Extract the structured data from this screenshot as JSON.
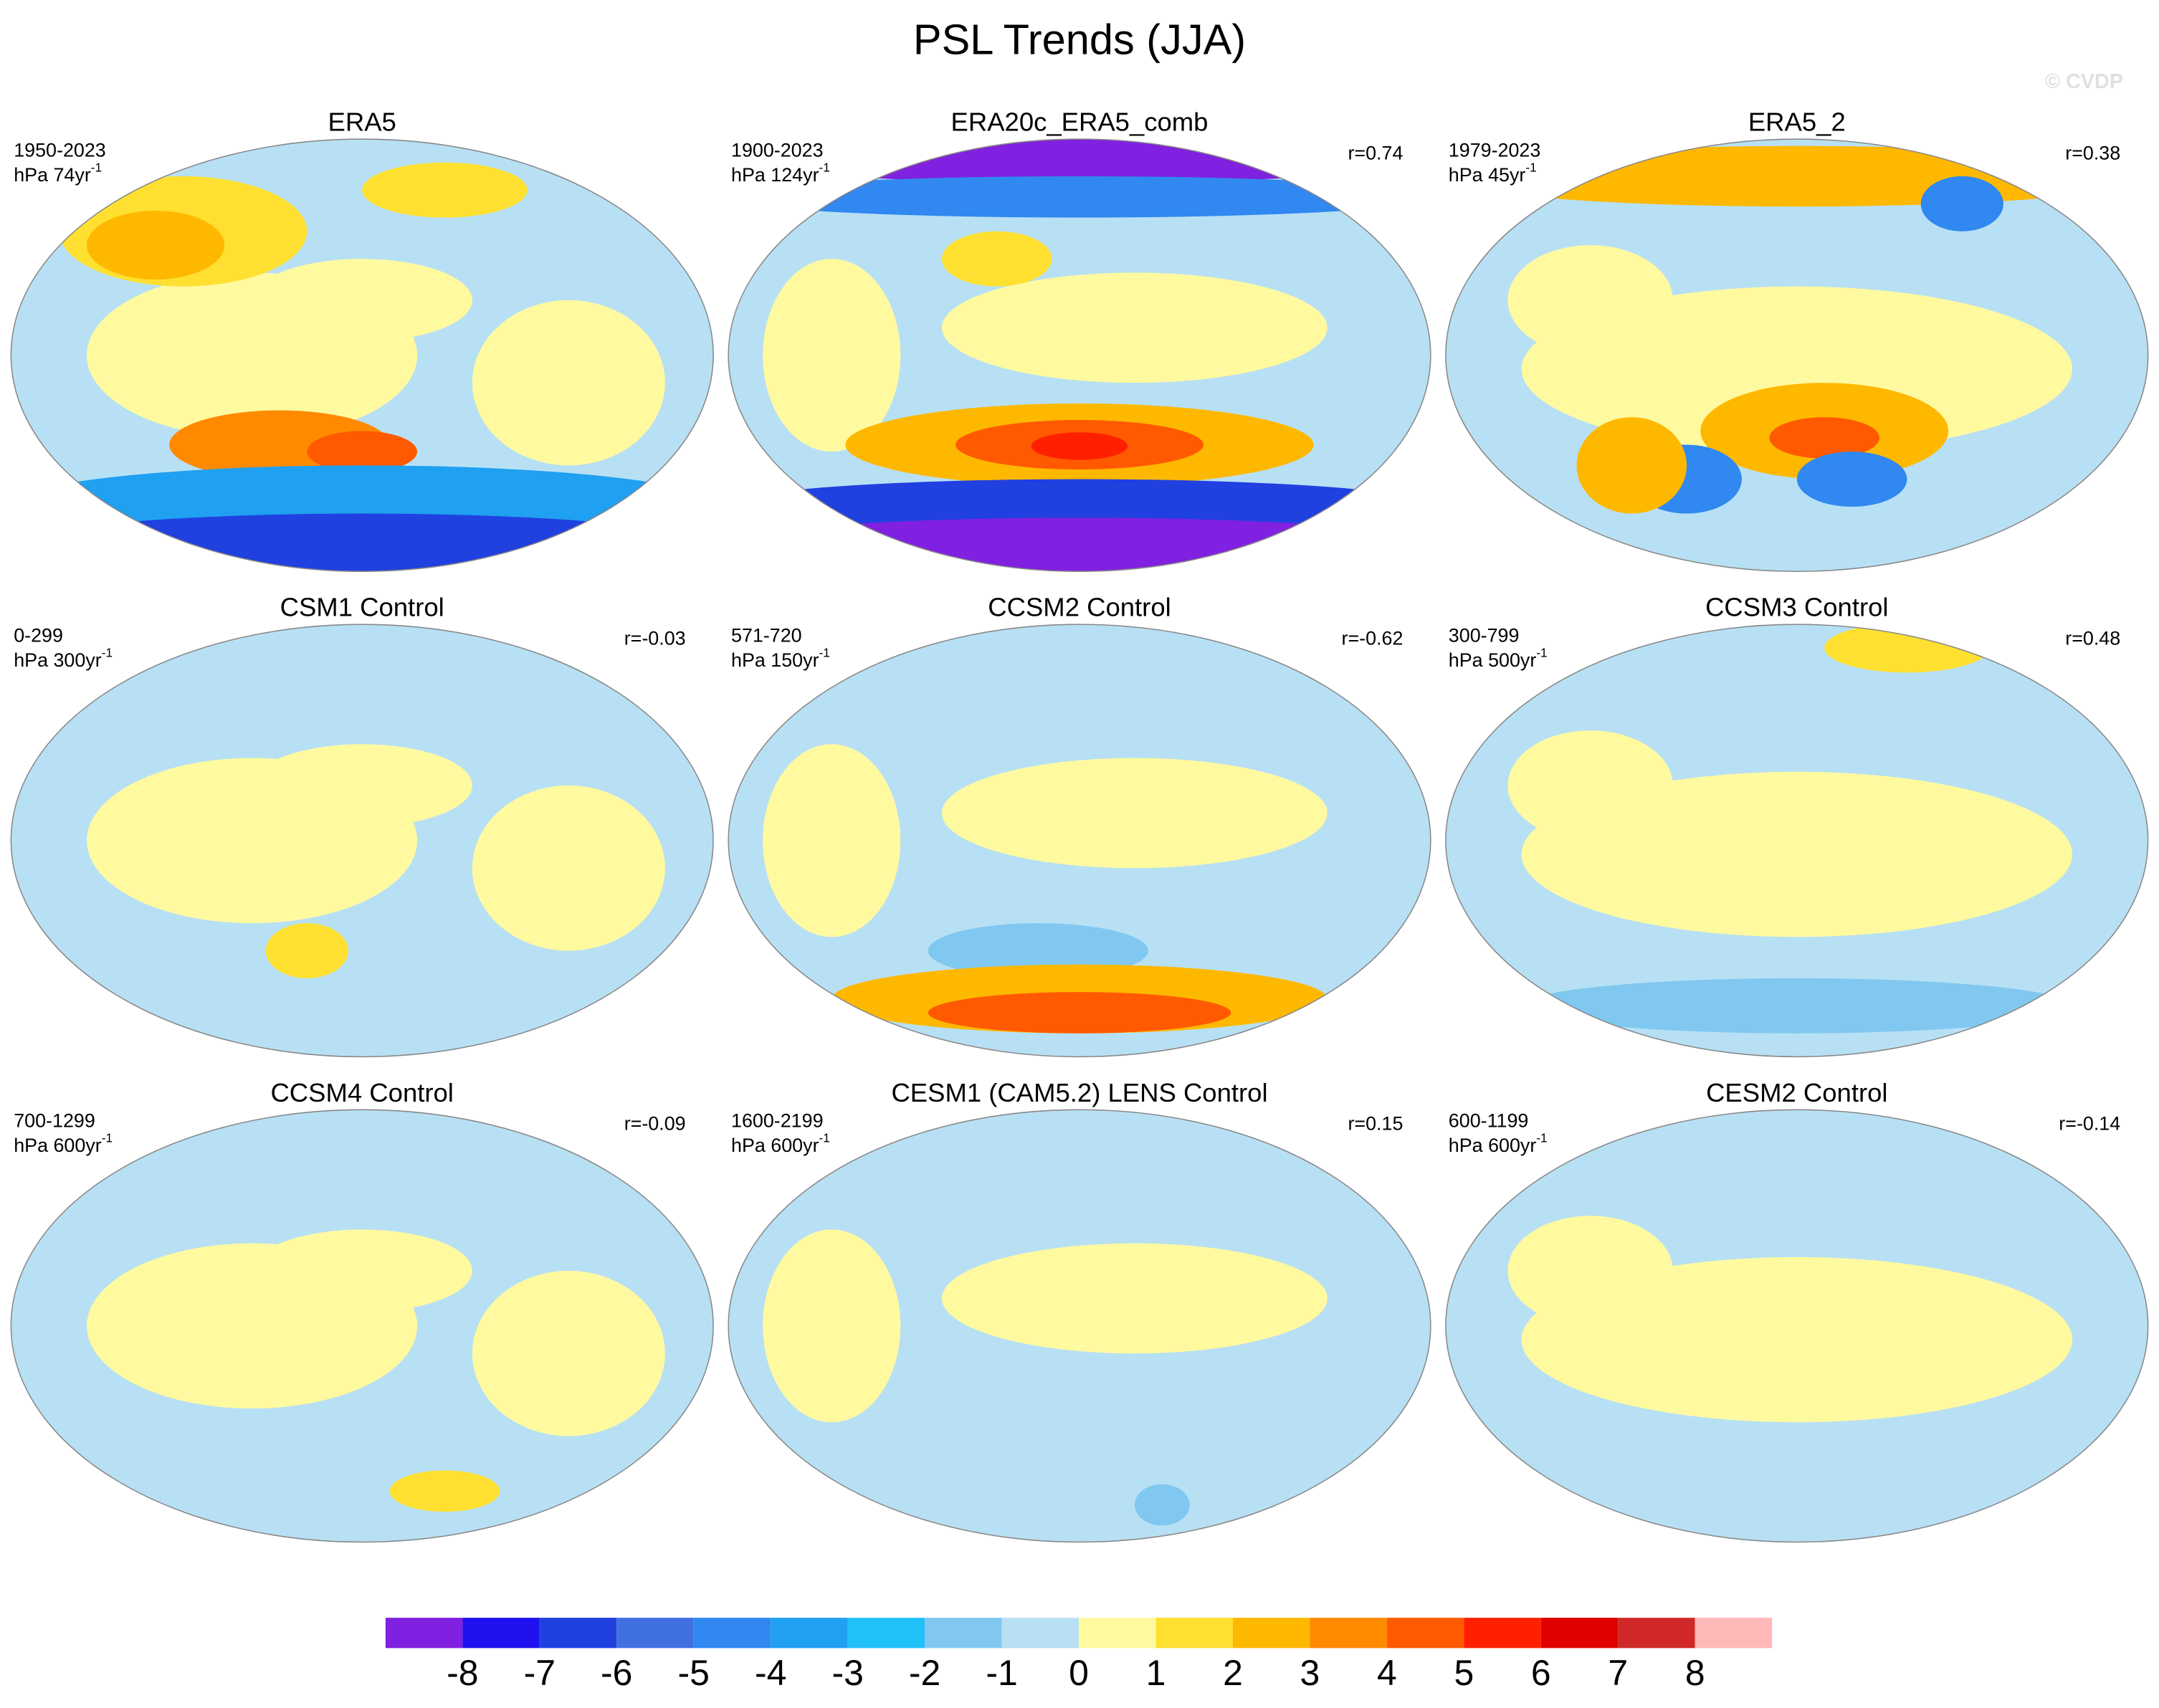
{
  "title": "PSL Trends (JJA)",
  "watermark": "© CVDP",
  "panels": [
    {
      "title": "ERA5",
      "period": "1950-2023",
      "units": "hPa 74yr",
      "exponent": "-1"
    },
    {
      "title": "ERA20c_ERA5_comb",
      "period": "1900-2023",
      "units": "hPa 124yr",
      "exponent": "-1",
      "r": "r=0.74"
    },
    {
      "title": "ERA5_2",
      "period": "1979-2023",
      "units": "hPa 45yr",
      "exponent": "-1",
      "r": "r=0.38"
    },
    {
      "title": "CSM1 Control",
      "period": "0-299",
      "units": "hPa 300yr",
      "exponent": "-1",
      "r": "r=-0.03"
    },
    {
      "title": "CCSM2 Control",
      "period": "571-720",
      "units": "hPa 150yr",
      "exponent": "-1",
      "r": "r=-0.62"
    },
    {
      "title": "CCSM3 Control",
      "period": "300-799",
      "units": "hPa 500yr",
      "exponent": "-1",
      "r": "r=0.48"
    },
    {
      "title": "CCSM4 Control",
      "period": "700-1299",
      "units": "hPa 600yr",
      "exponent": "-1",
      "r": "r=-0.09"
    },
    {
      "title": "CESM1 (CAM5.2) LENS Control",
      "period": "1600-2199",
      "units": "hPa 600yr",
      "exponent": "-1",
      "r": "r=0.15"
    },
    {
      "title": "CESM2 Control",
      "period": "600-1199",
      "units": "hPa 600yr",
      "exponent": "-1",
      "r": "r=-0.14"
    }
  ],
  "colorbar": {
    "colors": [
      "#8020e0",
      "#2010f0",
      "#2040e0",
      "#4070e0",
      "#3088f0",
      "#20a0f0",
      "#20c0f8",
      "#80c8f0",
      "#b8e0f4",
      "#fffaa0",
      "#ffe030",
      "#ffb800",
      "#ff8a00",
      "#ff5a00",
      "#ff2000",
      "#e00000",
      "#d02828",
      "#ffb8b8"
    ],
    "labels": [
      -8,
      -7,
      -6,
      -5,
      -4,
      -3,
      -2,
      -1,
      0,
      1,
      2,
      3,
      4,
      5,
      6,
      7,
      8
    ]
  }
}
